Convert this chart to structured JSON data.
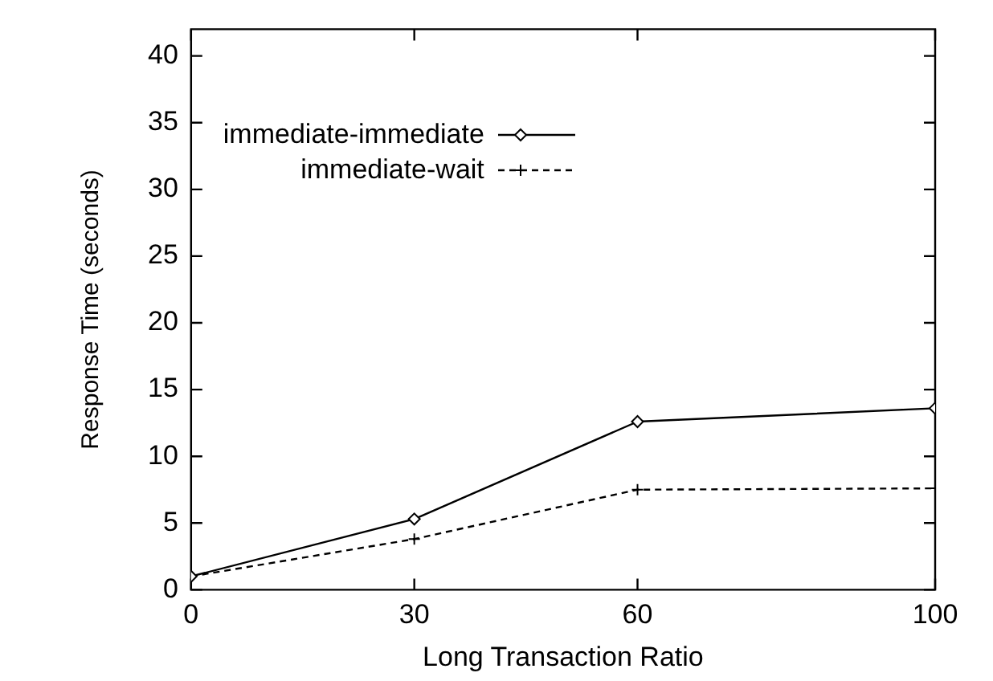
{
  "chart_data": {
    "type": "line",
    "xlabel": "Long Transaction Ratio",
    "ylabel": "Response Time (seconds)",
    "x": [
      0,
      30,
      60,
      100
    ],
    "series": [
      {
        "name": "immediate-immediate",
        "color": "#000000",
        "values": [
          1.0,
          5.3,
          12.6,
          13.6
        ],
        "marker": "diamond",
        "line_style": "solid"
      },
      {
        "name": "immediate-wait",
        "color": "#000000",
        "values": [
          1.0,
          3.8,
          7.5,
          7.6
        ],
        "marker": "cross",
        "line_style": "dashed"
      }
    ],
    "xlim": [
      0,
      100
    ],
    "xticks": [
      0,
      30,
      60,
      100
    ],
    "ylim": [
      0,
      42
    ],
    "yticks": [
      0,
      5,
      10,
      15,
      20,
      25,
      30,
      35,
      40
    ],
    "grid": false,
    "legend": "top left"
  }
}
